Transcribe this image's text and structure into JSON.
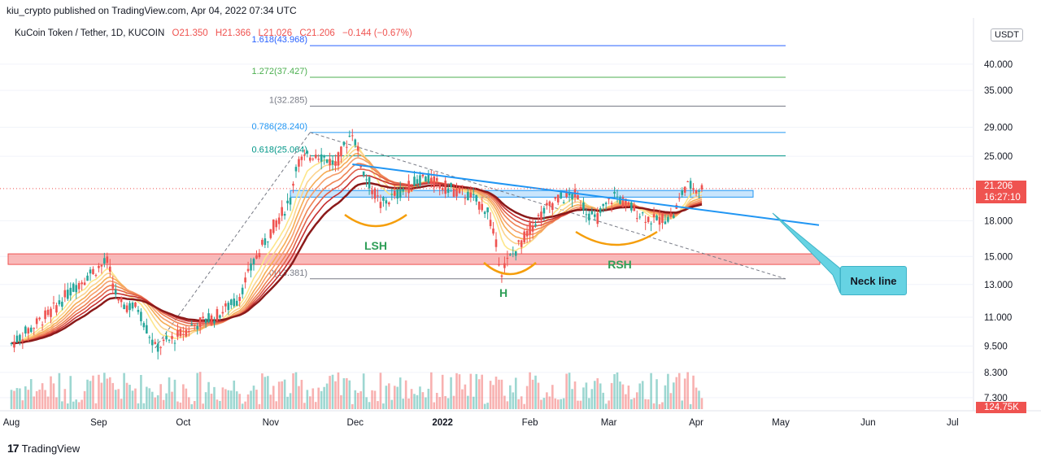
{
  "header": {
    "publisher": "kiu_crypto published on TradingView.com, Apr 04, 2022 07:34 UTC",
    "symbol": "KuCoin Token / Tether, 1D, KUCOIN",
    "open": "O21.350",
    "high": "H21.366",
    "low": "L21.026",
    "close": "C21.206",
    "change": "−0.144 (−0.67%)"
  },
  "currency_button": "USDT",
  "branding": "TradingView",
  "price_tags": {
    "last_price": "21.206",
    "countdown": "16:27:10",
    "volume": "124.75K"
  },
  "annotations": {
    "lsh": "LSH",
    "head": "H",
    "rsh": "RSH",
    "neck_line": "Neck line"
  },
  "fib_labels": [
    {
      "label": "1.618(43.968)",
      "price": 43.968,
      "color": "#2962ff"
    },
    {
      "label": "1.272(37.427)",
      "price": 37.427,
      "color": "#4caf50"
    },
    {
      "label": "1(32.285)",
      "price": 32.285,
      "color": "#787b86"
    },
    {
      "label": "0.786(28.240)",
      "price": 28.24,
      "color": "#2196f3"
    },
    {
      "label": "0.618(25.064)",
      "price": 25.064,
      "color": "#009688"
    },
    {
      "label": "0(13.381)",
      "price": 13.381,
      "color": "#787b86"
    }
  ],
  "colors": {
    "up": "#26a69a",
    "down": "#ef5350",
    "neck": "#2196f3",
    "support": "#f7a1a1",
    "resistance": "#bbdefb",
    "shoulder": "#f59e0b"
  },
  "chart_data": {
    "type": "candlestick",
    "title": "KuCoin Token / Tether, 1D, KUCOIN",
    "ylabel": "USDT",
    "y_scale": "log",
    "ylim": [
      7.0,
      45.0
    ],
    "y_ticks": [
      "40.000",
      "35.000",
      "29.000",
      "25.000",
      "18.000",
      "15.000",
      "13.000",
      "11.000",
      "9.500",
      "8.300",
      "7.300"
    ],
    "x_ticks": [
      "Aug",
      "Sep",
      "Oct",
      "Nov",
      "Dec",
      "2022",
      "Feb",
      "Mar",
      "Apr",
      "May",
      "Jun",
      "Jul"
    ],
    "close_path": [
      [
        "2021-08-01",
        9.6
      ],
      [
        "2021-08-08",
        10.4
      ],
      [
        "2021-08-15",
        11.3
      ],
      [
        "2021-08-22",
        12.6
      ],
      [
        "2021-08-29",
        13.8
      ],
      [
        "2021-09-04",
        14.6
      ],
      [
        "2021-09-08",
        11.8
      ],
      [
        "2021-09-15",
        11.5
      ],
      [
        "2021-09-21",
        9.4
      ],
      [
        "2021-09-28",
        9.9
      ],
      [
        "2021-10-05",
        10.6
      ],
      [
        "2021-10-12",
        11.0
      ],
      [
        "2021-10-20",
        12.0
      ],
      [
        "2021-10-27",
        15.0
      ],
      [
        "2021-11-02",
        17.5
      ],
      [
        "2021-11-08",
        20.0
      ],
      [
        "2021-11-10",
        24.0
      ],
      [
        "2021-11-17",
        25.5
      ],
      [
        "2021-11-24",
        24.0
      ],
      [
        "2021-11-30",
        28.5
      ],
      [
        "2021-12-04",
        23.0
      ],
      [
        "2021-12-10",
        19.5
      ],
      [
        "2021-12-18",
        21.0
      ],
      [
        "2021-12-25",
        22.5
      ],
      [
        "2022-01-01",
        21.5
      ],
      [
        "2022-01-10",
        20.5
      ],
      [
        "2022-01-17",
        19.0
      ],
      [
        "2022-01-22",
        14.0
      ],
      [
        "2022-01-27",
        15.5
      ],
      [
        "2022-02-03",
        18.0
      ],
      [
        "2022-02-10",
        20.0
      ],
      [
        "2022-02-17",
        20.5
      ],
      [
        "2022-02-24",
        18.0
      ],
      [
        "2022-03-03",
        20.5
      ],
      [
        "2022-03-10",
        19.0
      ],
      [
        "2022-03-17",
        18.0
      ],
      [
        "2022-03-24",
        18.5
      ],
      [
        "2022-03-28",
        21.5
      ],
      [
        "2022-04-04",
        21.206
      ]
    ],
    "support_zone": [
      14.4,
      15.2
    ],
    "resistance_zone": [
      20.3,
      21.0
    ],
    "last_volume": "124.75K"
  }
}
